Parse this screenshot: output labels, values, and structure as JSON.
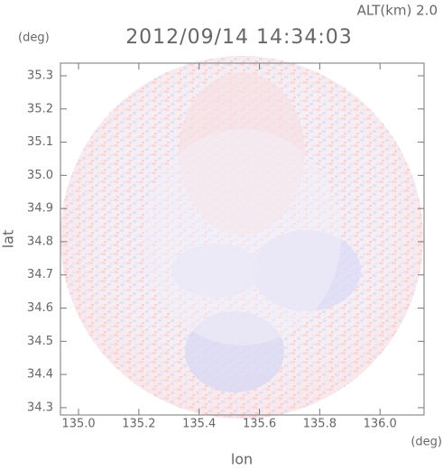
{
  "chart_data": {
    "type": "image",
    "title": "2012/09/14 14:34:03",
    "altitude_label": "ALT(km) 2.0",
    "xlabel": "lon",
    "ylabel": "lat",
    "xunit": "(deg)",
    "yunit": "(deg)",
    "xlim": [
      134.94,
      136.146
    ],
    "ylim": [
      34.278,
      35.338
    ],
    "xticks": [
      {
        "value": 135.0,
        "label": "135.0"
      },
      135.2,
      135.4,
      135.6,
      135.8,
      {
        "value": 136.0,
        "label": "136.0"
      }
    ],
    "yticks": [
      {
        "value": 34.3,
        "label": "34.3"
      },
      34.4,
      34.5,
      34.6,
      34.7,
      34.8,
      34.9,
      {
        "value": 35.0,
        "label": "35.0"
      },
      35.1,
      35.2,
      35.3
    ]
  }
}
